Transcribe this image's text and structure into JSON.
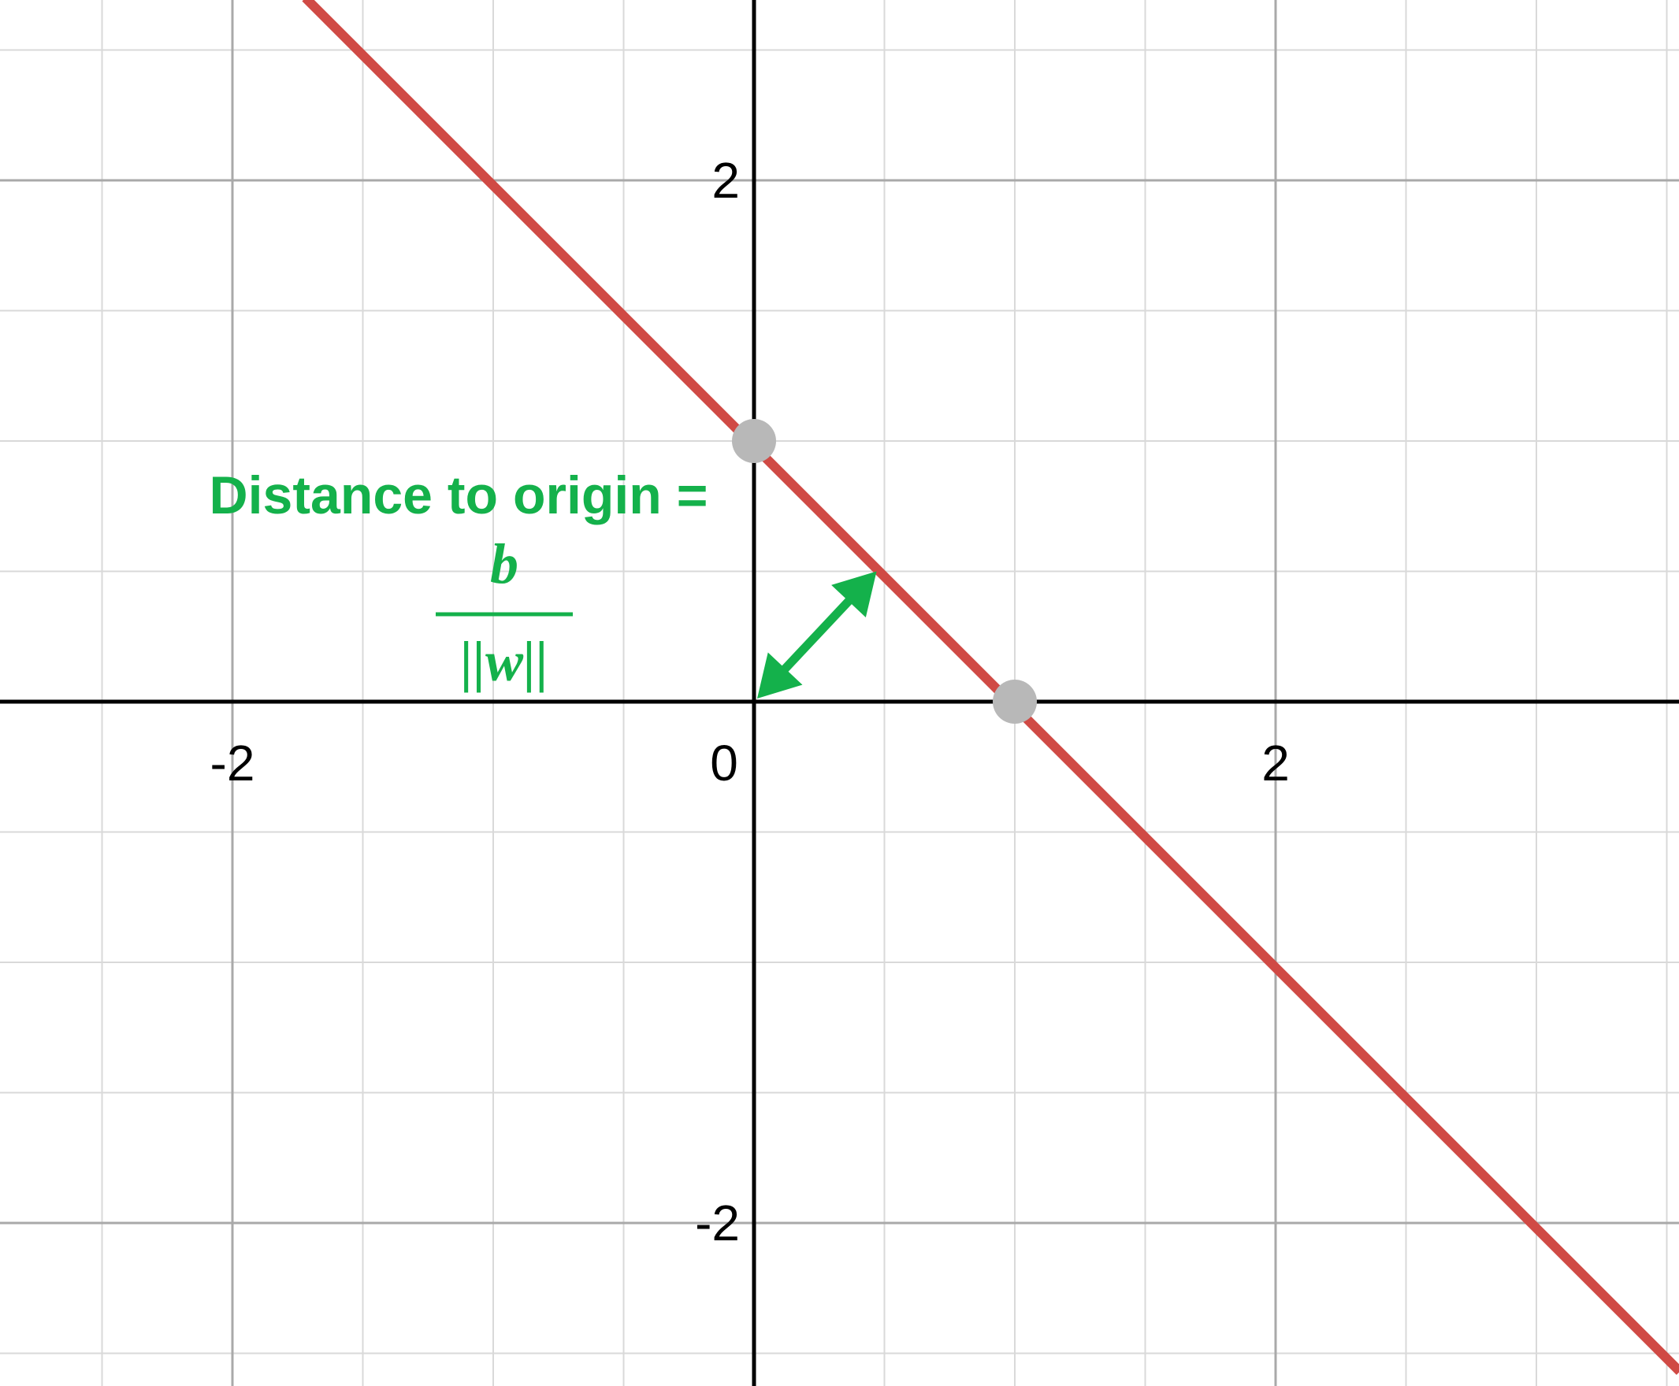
{
  "chart_data": {
    "type": "line",
    "title": "",
    "xlabel": "",
    "ylabel": "",
    "xlim": [
      -2.9,
      3.55
    ],
    "ylim": [
      -2.6,
      2.7
    ],
    "grid": true,
    "minor_step": 0.5,
    "major_step": 2,
    "x_tick_labels": [
      {
        "value": -2,
        "label": "-2"
      },
      {
        "value": 0,
        "label": "0"
      },
      {
        "value": 2,
        "label": "2"
      }
    ],
    "y_tick_labels": [
      {
        "value": 2,
        "label": "2"
      },
      {
        "value": -2,
        "label": "-2"
      }
    ],
    "series": [
      {
        "points": [
          [
            -1.72,
            2.7
          ],
          [
            3.55,
            -2.57
          ]
        ],
        "slope": -1,
        "intercept": 1
      }
    ],
    "points": [
      [
        0,
        1
      ],
      [
        1,
        0
      ]
    ],
    "arrow": {
      "from": [
        0,
        0
      ],
      "to": [
        0.47,
        0.5
      ]
    },
    "annotation": {
      "text": "Distance to origin =",
      "numerator": "b",
      "denominator": "||w||"
    },
    "colors": {
      "line": "#d04a45",
      "annotation": "#14b14b",
      "points": "#b8b8b8",
      "grid_minor": "#d9d9d9",
      "grid_major": "#a9a9a9",
      "axes": "#000000"
    }
  }
}
